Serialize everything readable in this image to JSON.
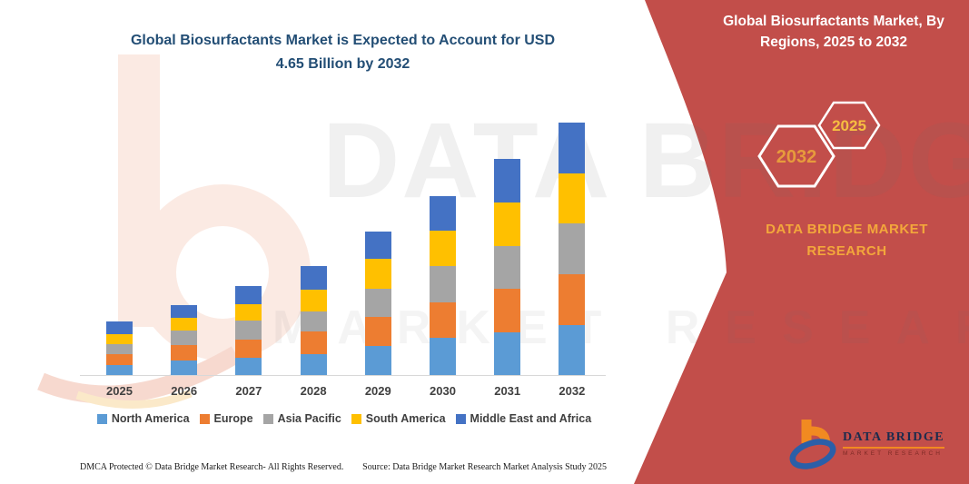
{
  "title": {
    "line1": "Global Biosurfactants Market is Expected to Account for USD",
    "line2": "4.65 Billion by 2032"
  },
  "sidebar": {
    "heading": "Global Biosurfactants Market, By Regions, 2025 to 2032",
    "hexagon_left": "2032",
    "hexagon_right": "2025",
    "brand": "DATA BRIDGE MARKET RESEARCH",
    "colors": {
      "background": "#C24E4A",
      "hexagon_border": "#FFFFFF",
      "hexagon_left_text": "#E79B3C",
      "hexagon_right_text": "#F6BE41",
      "brand_text": "#F3A73B"
    }
  },
  "chart_data": {
    "type": "bar",
    "stacked": true,
    "title": "Global Biosurfactants Market is Expected to Account for USD 4.65 Billion by 2032",
    "xlabel": "",
    "ylabel": "",
    "value_unit": "USD Billion (read from bar heights; 2032 total = 4.65)",
    "ylim": [
      0,
      5
    ],
    "grid": false,
    "legend_position": "bottom",
    "categories": [
      "2025",
      "2026",
      "2027",
      "2028",
      "2029",
      "2030",
      "2031",
      "2032"
    ],
    "series": [
      {
        "name": "North America",
        "color": "#5B9BD5",
        "values": [
          0.19,
          0.27,
          0.32,
          0.39,
          0.53,
          0.68,
          0.79,
          0.92
        ]
      },
      {
        "name": "Europe",
        "color": "#ED7D31",
        "values": [
          0.2,
          0.28,
          0.33,
          0.41,
          0.54,
          0.66,
          0.8,
          0.93
        ]
      },
      {
        "name": "Asia Pacific",
        "color": "#A5A5A5",
        "values": [
          0.18,
          0.27,
          0.35,
          0.37,
          0.52,
          0.67,
          0.79,
          0.95
        ]
      },
      {
        "name": "South America",
        "color": "#FFC000",
        "values": [
          0.19,
          0.24,
          0.31,
          0.41,
          0.55,
          0.65,
          0.8,
          0.91
        ]
      },
      {
        "name": "Middle East and Africa",
        "color": "#4472C4",
        "values": [
          0.23,
          0.23,
          0.33,
          0.42,
          0.51,
          0.63,
          0.8,
          0.94
        ]
      }
    ],
    "totals": [
      0.99,
      1.29,
      1.64,
      2.0,
      2.65,
      3.29,
      3.98,
      4.65
    ]
  },
  "footer": {
    "dmca": "DMCA Protected © Data Bridge Market Research-  All Rights Reserved.",
    "source": "Source: Data Bridge Market Research  Market Analysis Study 2025"
  },
  "logo": {
    "name": "DATA BRIDGE",
    "subtitle": "MARKET RESEARCH"
  },
  "watermark": {
    "text1": "DATA BRIDGE",
    "text2": "MARKET RESEARCH"
  }
}
